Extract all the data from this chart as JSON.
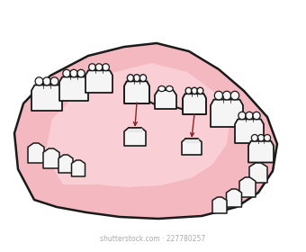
{
  "background_color": "#ffffff",
  "gum_color": "#f4b8c1",
  "gum_color2": "#f9cfd5",
  "gum_outline": "#1a1a1a",
  "tooth_fill": "#f5f5f5",
  "tooth_fill2": "#e8e8e8",
  "tooth_outline": "#1a1a1a",
  "arrow_color": "#8b2020",
  "watermark": "shutterstock.com · 227780257",
  "watermark_color": "#aaaaaa",
  "figsize": [
    3.4,
    2.8
  ],
  "dpi": 100
}
